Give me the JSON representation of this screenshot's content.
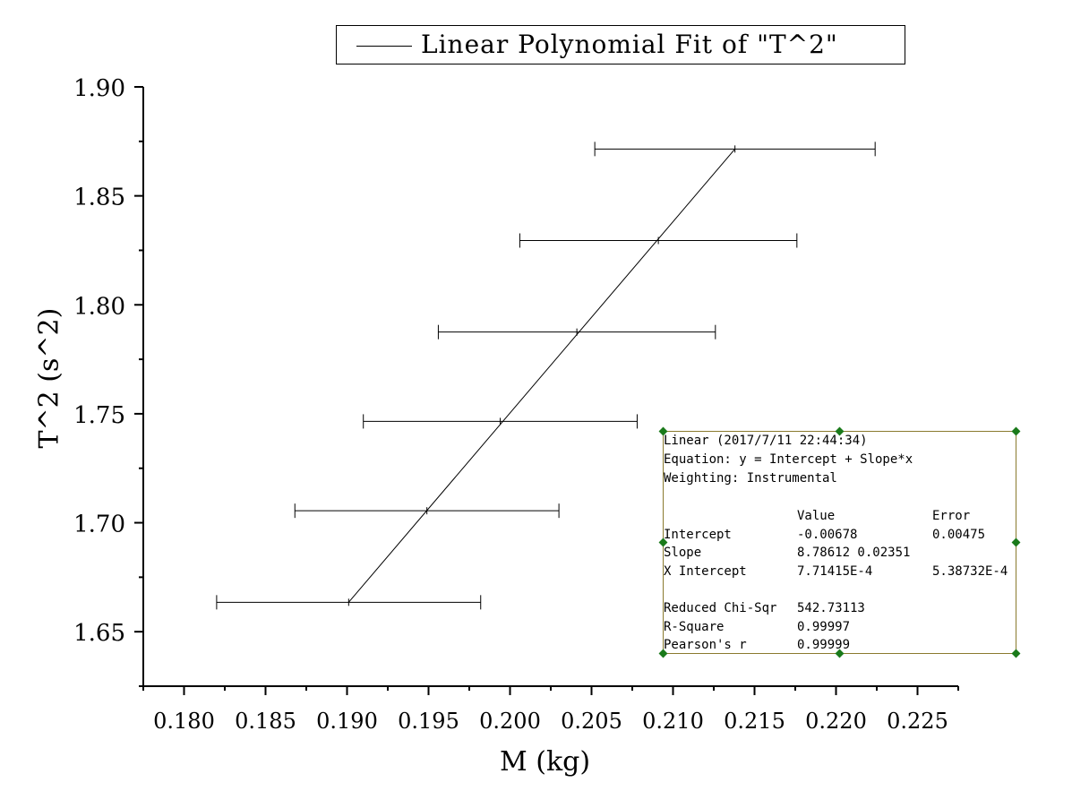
{
  "chart_data": {
    "type": "scatter",
    "xlabel": "M (kg)",
    "ylabel": "T^2 (s^2)",
    "xlim": [
      0.1775,
      0.2275
    ],
    "ylim": [
      1.625,
      1.9
    ],
    "x_ticks": [
      "0.180",
      "0.185",
      "0.190",
      "0.195",
      "0.200",
      "0.205",
      "0.210",
      "0.215",
      "0.220",
      "0.225"
    ],
    "x_tick_values": [
      0.18,
      0.185,
      0.19,
      0.195,
      0.2,
      0.205,
      0.21,
      0.215,
      0.22,
      0.225
    ],
    "y_ticks": [
      "1.65",
      "1.70",
      "1.75",
      "1.80",
      "1.85",
      "1.90"
    ],
    "y_tick_values": [
      1.65,
      1.7,
      1.75,
      1.8,
      1.85,
      1.9
    ],
    "series": [
      {
        "name": "T^2",
        "points": [
          {
            "x": 0.1901,
            "y": 1.6635,
            "xerr": 0.0081
          },
          {
            "x": 0.1949,
            "y": 1.7055,
            "xerr": 0.0081
          },
          {
            "x": 0.1994,
            "y": 1.7465,
            "xerr": 0.0084
          },
          {
            "x": 0.2041,
            "y": 1.7875,
            "xerr": 0.0085
          },
          {
            "x": 0.2091,
            "y": 1.8295,
            "xerr": 0.0085
          },
          {
            "x": 0.2138,
            "y": 1.8715,
            "xerr": 0.0086
          }
        ]
      }
    ],
    "fit": {
      "name": "Linear Polynomial Fit of \"T^2\"",
      "x_start": 0.1901,
      "x_end": 0.2138,
      "y_start": 1.6635,
      "y_end": 1.8715
    },
    "legend": {
      "label": "Linear Polynomial Fit of \"T^2\"",
      "placement": "top"
    },
    "grid": false
  },
  "fit_report": {
    "line1": "Linear (2017/7/11 22:44:34)",
    "line2": "Equation: y = Intercept + Slope*x",
    "line3": "Weighting: Instrumental",
    "header_value": "Value",
    "header_error": "Error",
    "rows": [
      {
        "label": "Intercept",
        "value": "-0.00678",
        "error": "0.00475"
      },
      {
        "label": "Slope",
        "value": "8.78612 0.02351",
        "error": ""
      },
      {
        "label": "X Intercept",
        "value": "7.71415E-4",
        "error": "5.38732E-4"
      }
    ],
    "stats": [
      {
        "label": "Reduced Chi-Sqr",
        "value": "542.73113"
      },
      {
        "label": "R-Square",
        "value": "0.99997"
      },
      {
        "label": "Pearson's r",
        "value": "0.99999"
      }
    ]
  }
}
